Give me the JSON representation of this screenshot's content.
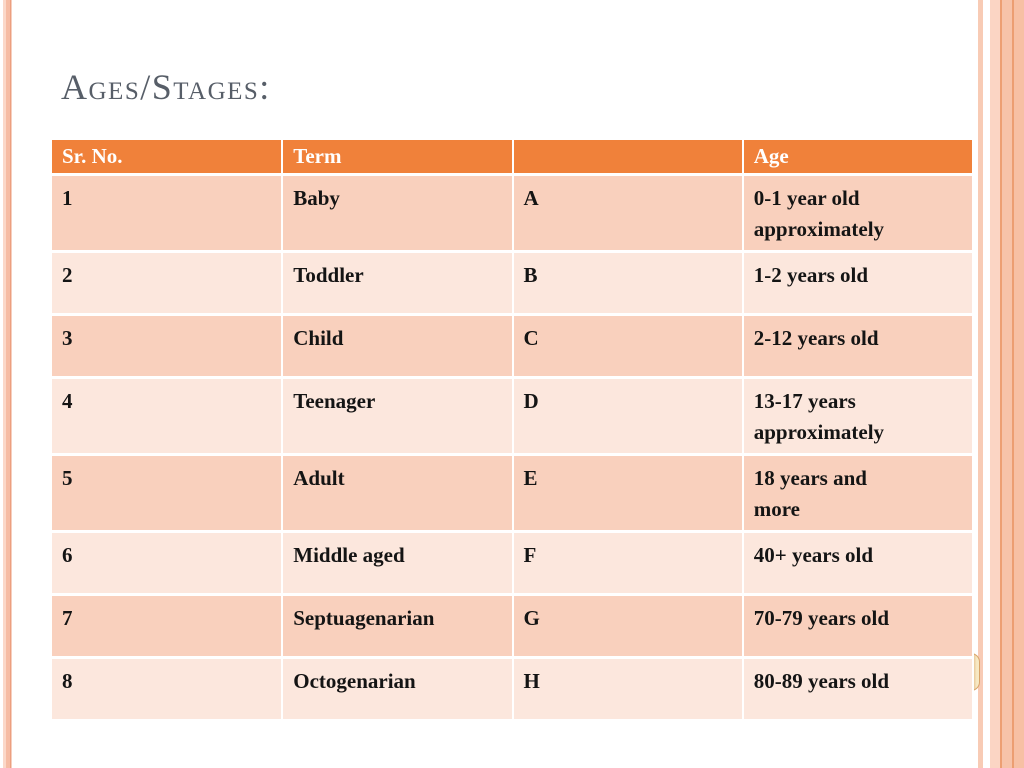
{
  "slide": {
    "title": "Ages/Stages:"
  },
  "table": {
    "headers": [
      "Sr. No.",
      "Term",
      "",
      "Age"
    ],
    "rows": [
      {
        "sr": "1",
        "term": "Baby",
        "letter": "A",
        "age_lines": [
          "0-1 year old",
          "approximately"
        ]
      },
      {
        "sr": "2",
        "term": "Toddler",
        "letter": "B",
        "age_lines": [
          "1-2 years old"
        ]
      },
      {
        "sr": "3",
        "term": "Child",
        "letter": "C",
        "age_lines": [
          "2-12 years old"
        ]
      },
      {
        "sr": "4",
        "term": "Teenager",
        "letter": "D",
        "age_lines": [
          "13-17 years",
          "approximately"
        ]
      },
      {
        "sr": "5",
        "term": "Adult",
        "letter": "E",
        "age_lines": [
          "18 years and",
          "more"
        ]
      },
      {
        "sr": "6",
        "term": "Middle aged",
        "letter": "F",
        "age_lines": [
          "40+ years old"
        ]
      },
      {
        "sr": "7",
        "term": "Septuagenarian",
        "letter": "G",
        "age_lines": [
          "70-79 years old"
        ]
      },
      {
        "sr": "8",
        "term": "Octogenarian",
        "letter": "H",
        "age_lines": [
          "80-89 years old"
        ]
      }
    ]
  },
  "colors": {
    "header_bg": "#F0813A",
    "header_text": "#FFFFFF",
    "row_odd_bg": "#F9D0BD",
    "row_even_bg": "#FCE7DD",
    "cell_text": "#141414",
    "title_text": "#575E68",
    "edge_stripe_light": "#FBD8C9",
    "edge_stripe_mid": "#F6BCA4",
    "edge_stripe_dark": "#EC9F7F",
    "right_band_light": "#FBD5C4",
    "right_band_mid": "#F7C3A9",
    "right_band_line": "#ED9F73"
  }
}
